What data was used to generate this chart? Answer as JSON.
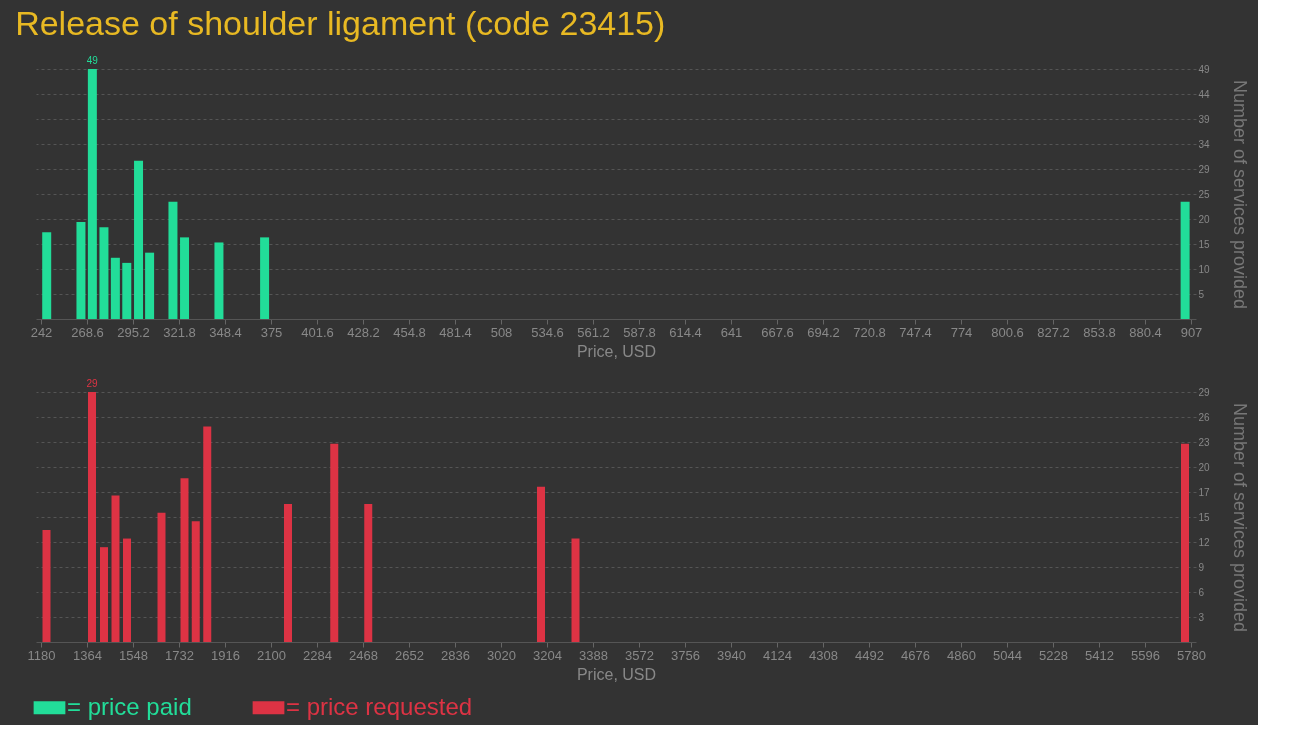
{
  "chart_data": [
    {
      "type": "bar",
      "title": "Release of shoulder ligament (code 23415)",
      "xlabel": "Price, USD",
      "ylabel": "Number of services provided",
      "grid": "y",
      "legend": "bottom",
      "x": [
        245.3,
        265.1,
        271.7,
        278.4,
        285.0,
        291.6,
        298.4,
        304.8,
        318.3,
        325.0,
        344.9,
        371.3,
        903.6
      ],
      "series": [
        {
          "name": "= price paid",
          "color": "#22dd99",
          "values": [
            17,
            19,
            49,
            18,
            12,
            11,
            31,
            13,
            23,
            16,
            15,
            16,
            23
          ]
        }
      ],
      "value_labels": [
        null,
        null,
        "49",
        null,
        null,
        null,
        null,
        null,
        null,
        null,
        null,
        null,
        null
      ],
      "xlim": [
        242,
        907
      ],
      "xticks": [
        242,
        268.6,
        295.2,
        321.8,
        348.4,
        375,
        401.6,
        428.2,
        454.8,
        481.4,
        508,
        534.6,
        561.2,
        587.8,
        614.4,
        641,
        667.6,
        694.2,
        720.8,
        747.4,
        774,
        800.6,
        827.2,
        853.8,
        880.4,
        907
      ],
      "ylim": [
        0,
        49
      ],
      "yticks": [
        {
          "value": 4.9,
          "label": "5"
        },
        {
          "value": 9.8,
          "label": "10"
        },
        {
          "value": 14.7,
          "label": "15"
        },
        {
          "value": 19.6,
          "label": "20"
        },
        {
          "value": 24.5,
          "label": "25"
        },
        {
          "value": 29.4,
          "label": "29"
        },
        {
          "value": 34.3,
          "label": "34"
        },
        {
          "value": 39.2,
          "label": "39"
        },
        {
          "value": 44.1,
          "label": "44"
        },
        {
          "value": 49,
          "label": "49"
        }
      ]
    },
    {
      "type": "bar",
      "xlabel": "Price, USD",
      "ylabel": "Number of services provided",
      "grid": "y",
      "legend": "bottom",
      "x": [
        1202,
        1384,
        1432,
        1478,
        1524,
        1662,
        1754,
        1799,
        1845,
        2168,
        2353,
        2489,
        3180,
        3318,
        5756
      ],
      "series": [
        {
          "name": "= price requested",
          "color": "#dd3344",
          "values": [
            13,
            29,
            11,
            17,
            12,
            15,
            19,
            14,
            25,
            16,
            23,
            16,
            18,
            12,
            23
          ]
        }
      ],
      "value_labels": [
        null,
        "29",
        null,
        null,
        null,
        null,
        null,
        null,
        null,
        null,
        null,
        null,
        null,
        null,
        null
      ],
      "xlim": [
        1180,
        5780
      ],
      "xticks": [
        1180,
        1364,
        1548,
        1732,
        1916,
        2100,
        2284,
        2468,
        2652,
        2836,
        3020,
        3204,
        3388,
        3572,
        3756,
        3940,
        4124,
        4308,
        4492,
        4676,
        4860,
        5044,
        5228,
        5412,
        5596,
        5780
      ],
      "ylim": [
        0,
        29
      ],
      "yticks": [
        {
          "value": 2.9,
          "label": "3"
        },
        {
          "value": 5.8,
          "label": "6"
        },
        {
          "value": 8.7,
          "label": "9"
        },
        {
          "value": 11.6,
          "label": "12"
        },
        {
          "value": 14.5,
          "label": "15"
        },
        {
          "value": 17.4,
          "label": "17"
        },
        {
          "value": 20.3,
          "label": "20"
        },
        {
          "value": 23.2,
          "label": "23"
        },
        {
          "value": 26.1,
          "label": "26"
        },
        {
          "value": 29,
          "label": "29"
        }
      ]
    }
  ]
}
